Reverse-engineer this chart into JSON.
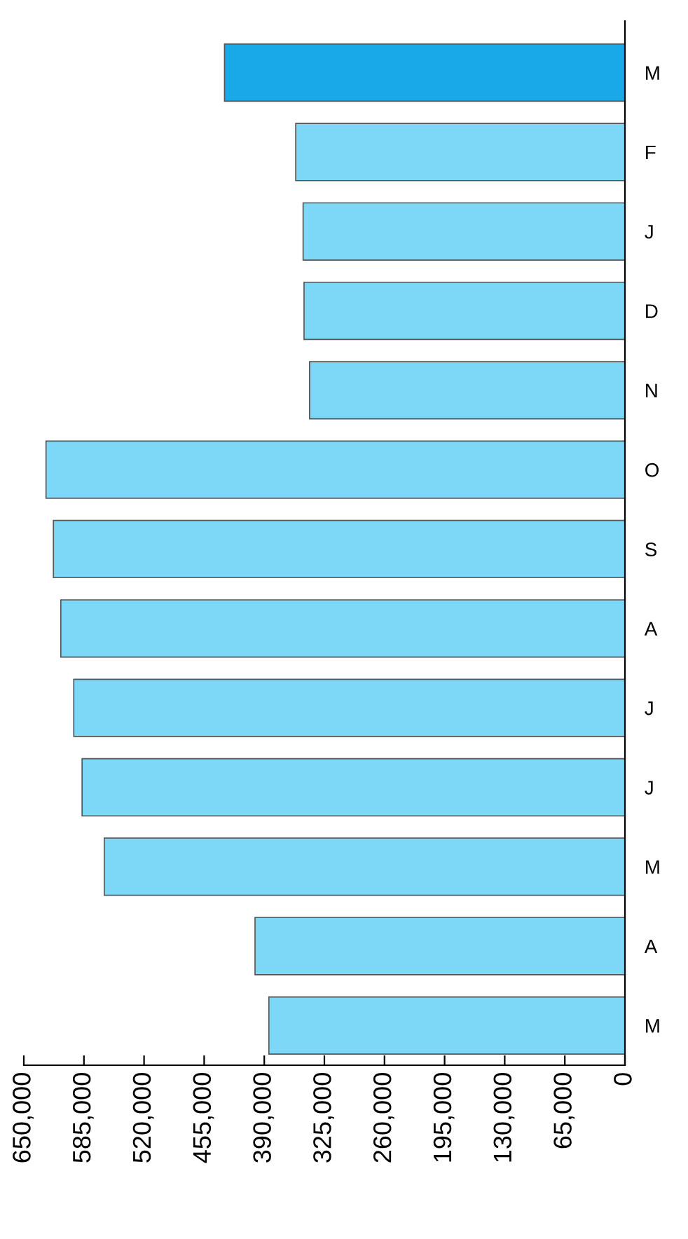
{
  "chart_data": {
    "type": "bar",
    "orientation": "horizontal",
    "categories": [
      "M",
      "F",
      "J",
      "D",
      "N",
      "O",
      "S",
      "A",
      "J",
      "J",
      "M",
      "A",
      "M"
    ],
    "values": [
      433000,
      356000,
      348000,
      347000,
      341000,
      626000,
      618000,
      610000,
      596000,
      587000,
      563000,
      400000,
      385000
    ],
    "colors": [
      "#19a8e8",
      "#7dd8f8",
      "#7dd8f8",
      "#7dd8f8",
      "#7dd8f8",
      "#7dd8f8",
      "#7dd8f8",
      "#7dd8f8",
      "#7dd8f8",
      "#7dd8f8",
      "#7dd8f8",
      "#7dd8f8",
      "#7dd8f8"
    ],
    "xlim": [
      650000,
      0
    ],
    "xticks": [
      {
        "value": 650000,
        "label": "650,000"
      },
      {
        "value": 585000,
        "label": "585,000"
      },
      {
        "value": 520000,
        "label": "520,000"
      },
      {
        "value": 455000,
        "label": "455,000"
      },
      {
        "value": 390000,
        "label": "390,000"
      },
      {
        "value": 325000,
        "label": "325,000"
      },
      {
        "value": 260000,
        "label": "260,000"
      },
      {
        "value": 195000,
        "label": "195,000"
      },
      {
        "value": 130000,
        "label": "130,000"
      },
      {
        "value": 65000,
        "label": "65,000"
      },
      0
    ],
    "grid": false
  }
}
